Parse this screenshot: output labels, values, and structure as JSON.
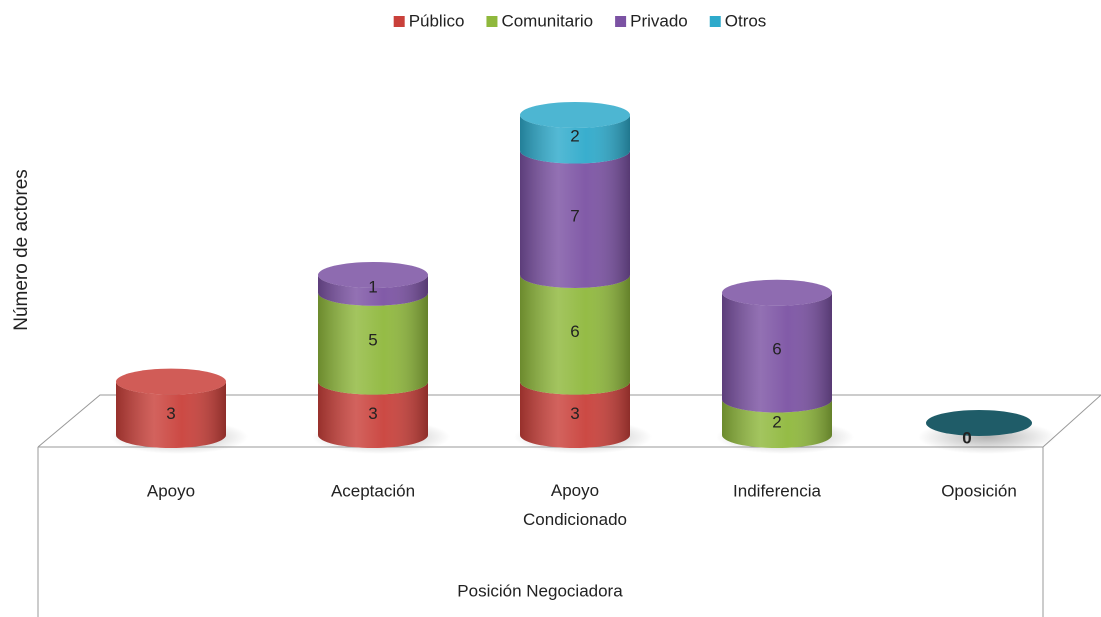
{
  "chart_data": {
    "type": "bar3d-stacked",
    "y_label": "Número de actores",
    "x_label": "Posición Negociadora",
    "categories": [
      "Apoyo",
      "Aceptación",
      "Apoyo Condicionado",
      "Indiferencia",
      "Oposición"
    ],
    "series": [
      {
        "name": "Público",
        "color": "#c9403a",
        "values": [
          3,
          3,
          3,
          0,
          0
        ]
      },
      {
        "name": "Comunitario",
        "color": "#8fb83c",
        "values": [
          0,
          5,
          6,
          2,
          0
        ]
      },
      {
        "name": "Privado",
        "color": "#7b52a3",
        "values": [
          0,
          1,
          7,
          6,
          0
        ]
      },
      {
        "name": "Otros",
        "color": "#2eaacb",
        "values": [
          0,
          0,
          2,
          0,
          0
        ]
      }
    ]
  }
}
